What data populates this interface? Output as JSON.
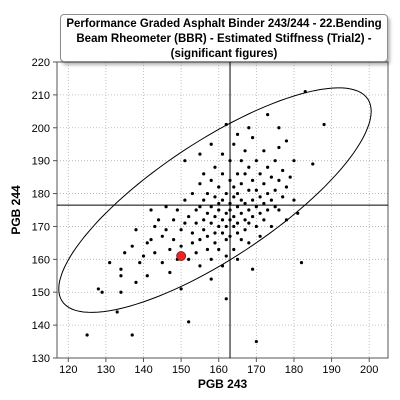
{
  "chart_data": {
    "type": "scatter",
    "title": "Performance Graded Asphalt Binder 243/244 - 22.Bending Beam Rheometer (BBR) - Estimated Stiffness (Trial2) - (significant figures)",
    "xlabel": "PGB 243",
    "ylabel": "PGB 244",
    "xlim": [
      117,
      205
    ],
    "ylim": [
      130,
      220
    ],
    "xticks": [
      120,
      130,
      140,
      150,
      160,
      170,
      180,
      190,
      200
    ],
    "yticks": [
      130,
      140,
      150,
      160,
      170,
      180,
      190,
      200,
      210,
      220
    ],
    "grid": "dotted",
    "reference_lines": {
      "x": 163,
      "y": 176.5
    },
    "highlight_point": {
      "x": 150,
      "y": 161,
      "color": "#e8262a"
    },
    "confidence_ellipse": {
      "center": [
        159,
        178
      ],
      "semi_axes": [
        51,
        17
      ],
      "angle_deg": 38
    },
    "colors": {
      "points": "#000000",
      "highlight": "#e8262a",
      "grid": "#b0b0b0",
      "lines": "#000000"
    },
    "points": [
      [
        125,
        137
      ],
      [
        128,
        151
      ],
      [
        129,
        150
      ],
      [
        131,
        159
      ],
      [
        133,
        144
      ],
      [
        134,
        150
      ],
      [
        134,
        155
      ],
      [
        134,
        157
      ],
      [
        135,
        162
      ],
      [
        137,
        137
      ],
      [
        137,
        164
      ],
      [
        138,
        169
      ],
      [
        138,
        153
      ],
      [
        139,
        159
      ],
      [
        140,
        161
      ],
      [
        141,
        165
      ],
      [
        141,
        155
      ],
      [
        142,
        175
      ],
      [
        142,
        166
      ],
      [
        143,
        170
      ],
      [
        143,
        162
      ],
      [
        144,
        172
      ],
      [
        145,
        159
      ],
      [
        145,
        167
      ],
      [
        146,
        176
      ],
      [
        146,
        169
      ],
      [
        147,
        163
      ],
      [
        147,
        156
      ],
      [
        148,
        172
      ],
      [
        148,
        166
      ],
      [
        149,
        175
      ],
      [
        149,
        160
      ],
      [
        150,
        169
      ],
      [
        150,
        164
      ],
      [
        150,
        151
      ],
      [
        151,
        178
      ],
      [
        151,
        171
      ],
      [
        151,
        190
      ],
      [
        152,
        160
      ],
      [
        152,
        173
      ],
      [
        152,
        141
      ],
      [
        153,
        165
      ],
      [
        153,
        180
      ],
      [
        153,
        168
      ],
      [
        154,
        175
      ],
      [
        154,
        171
      ],
      [
        154,
        162
      ],
      [
        155,
        183
      ],
      [
        155,
        176
      ],
      [
        155,
        166
      ],
      [
        155,
        158
      ],
      [
        156,
        172
      ],
      [
        156,
        178
      ],
      [
        156,
        169
      ],
      [
        156,
        186
      ],
      [
        157,
        174
      ],
      [
        157,
        163
      ],
      [
        157,
        180
      ],
      [
        157,
        167
      ],
      [
        158,
        176
      ],
      [
        158,
        171
      ],
      [
        158,
        184
      ],
      [
        158,
        160
      ],
      [
        158,
        154
      ],
      [
        159,
        173
      ],
      [
        159,
        179
      ],
      [
        159,
        168
      ],
      [
        159,
        188
      ],
      [
        159,
        165
      ],
      [
        160,
        175
      ],
      [
        160,
        170
      ],
      [
        160,
        182
      ],
      [
        160,
        163
      ],
      [
        160,
        177
      ],
      [
        161,
        172
      ],
      [
        161,
        186
      ],
      [
        161,
        168
      ],
      [
        161,
        158
      ],
      [
        161,
        178
      ],
      [
        161,
        192
      ],
      [
        162,
        174
      ],
      [
        162,
        166
      ],
      [
        162,
        180
      ],
      [
        162,
        170
      ],
      [
        162,
        161
      ],
      [
        162,
        148
      ],
      [
        163,
        177
      ],
      [
        163,
        172
      ],
      [
        163,
        184
      ],
      [
        163,
        167
      ],
      [
        163,
        190
      ],
      [
        163,
        175
      ],
      [
        164,
        179
      ],
      [
        164,
        170
      ],
      [
        164,
        163
      ],
      [
        164,
        182
      ],
      [
        164,
        173
      ],
      [
        164,
        195
      ],
      [
        165,
        176
      ],
      [
        165,
        168
      ],
      [
        165,
        186
      ],
      [
        165,
        171
      ],
      [
        165,
        180
      ],
      [
        165,
        160
      ],
      [
        166,
        174
      ],
      [
        166,
        178
      ],
      [
        166,
        190
      ],
      [
        166,
        166
      ],
      [
        166,
        183
      ],
      [
        167,
        172
      ],
      [
        167,
        177
      ],
      [
        167,
        169
      ],
      [
        167,
        186
      ],
      [
        167,
        193
      ],
      [
        168,
        175
      ],
      [
        168,
        181
      ],
      [
        168,
        171
      ],
      [
        168,
        165
      ],
      [
        168,
        188
      ],
      [
        169,
        178
      ],
      [
        169,
        173
      ],
      [
        169,
        184
      ],
      [
        169,
        157
      ],
      [
        169,
        197
      ],
      [
        170,
        176
      ],
      [
        170,
        181
      ],
      [
        170,
        170
      ],
      [
        170,
        190
      ],
      [
        170,
        135
      ],
      [
        171,
        174
      ],
      [
        171,
        179
      ],
      [
        171,
        186
      ],
      [
        171,
        167
      ],
      [
        172,
        177
      ],
      [
        172,
        183
      ],
      [
        172,
        172
      ],
      [
        172,
        193
      ],
      [
        173,
        175
      ],
      [
        173,
        180
      ],
      [
        173,
        188
      ],
      [
        173,
        204
      ],
      [
        174,
        178
      ],
      [
        174,
        185
      ],
      [
        174,
        170
      ],
      [
        175,
        181
      ],
      [
        175,
        176
      ],
      [
        175,
        190
      ],
      [
        176,
        184
      ],
      [
        176,
        175
      ],
      [
        176,
        194
      ],
      [
        177,
        179
      ],
      [
        177,
        187
      ],
      [
        178,
        182
      ],
      [
        178,
        196
      ],
      [
        178,
        172
      ],
      [
        179,
        185
      ],
      [
        180,
        190
      ],
      [
        180,
        178
      ],
      [
        181,
        174
      ],
      [
        182,
        159
      ],
      [
        183,
        211
      ],
      [
        185,
        189
      ],
      [
        188,
        201
      ],
      [
        168,
        200
      ],
      [
        165,
        198
      ],
      [
        158,
        195
      ],
      [
        155,
        192
      ],
      [
        176,
        200
      ],
      [
        162,
        201
      ]
    ]
  }
}
